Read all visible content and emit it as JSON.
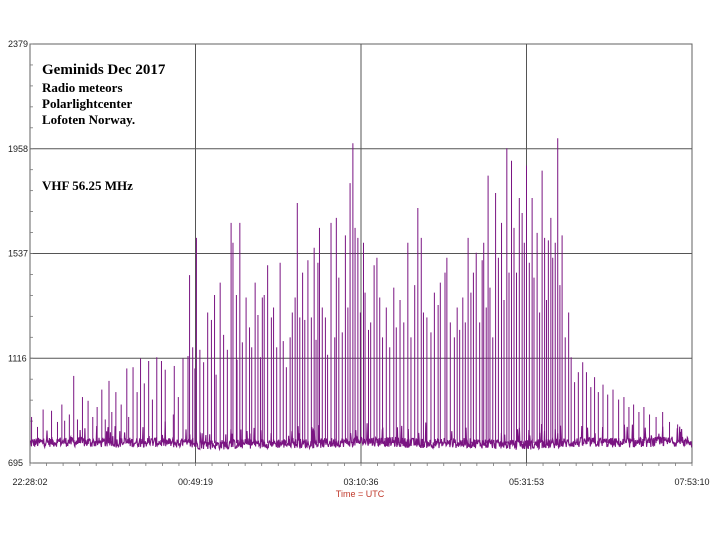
{
  "chart_data": {
    "type": "line",
    "title": "Geminids Dec 2017",
    "annotation_lines": [
      "Radio meteors",
      "Polarlightcenter",
      "Lofoten Norway."
    ],
    "frequency_label": "VHF 56.25 MHz",
    "xlabel": "Time = UTC",
    "ylabel": "",
    "x_tick_labels": [
      "22:28:02",
      "00:49:19",
      "03:10:36",
      "05:31:53",
      "07:53:10"
    ],
    "y_tick_labels": [
      "695",
      "1116",
      "1537",
      "1958",
      "2379"
    ],
    "ylim": [
      695,
      2379
    ],
    "grid": true,
    "line_color": "#7a1482",
    "baseline": 775,
    "noise_amplitude": 20,
    "series": [
      {
        "values": [
          [
            0.5,
            880
          ],
          [
            2.4,
            840
          ],
          [
            4.2,
            910
          ],
          [
            6.9,
            905
          ],
          [
            8.8,
            860
          ],
          [
            10.2,
            930
          ],
          [
            11.1,
            865
          ],
          [
            12.6,
            890
          ],
          [
            14.0,
            1045
          ],
          [
            15.2,
            870
          ],
          [
            16.8,
            960
          ],
          [
            18.6,
            945
          ],
          [
            20.1,
            880
          ],
          [
            21.5,
            920
          ],
          [
            23.0,
            990
          ],
          [
            24.1,
            870
          ],
          [
            25.3,
            1025
          ],
          [
            26.2,
            900
          ],
          [
            27.5,
            980
          ],
          [
            29.2,
            930
          ],
          [
            31.0,
            1075
          ],
          [
            31.6,
            880
          ],
          [
            33.0,
            1080
          ],
          [
            34.3,
            980
          ],
          [
            35.4,
            1115
          ],
          [
            36.6,
            1015
          ],
          [
            38.0,
            1105
          ],
          [
            39.2,
            950
          ],
          [
            40.6,
            1120
          ],
          [
            42.1,
            1105
          ],
          [
            43.3,
            1070
          ],
          [
            45.9,
            890
          ],
          [
            46.2,
            1085
          ],
          [
            47.5,
            960
          ],
          [
            49.0,
            1115
          ],
          [
            50.6,
            1125
          ],
          [
            51.1,
            1450
          ],
          [
            52.1,
            1160
          ],
          [
            52.8,
            1075
          ],
          [
            53.3,
            1600
          ],
          [
            54.4,
            1150
          ],
          [
            55.6,
            1100
          ],
          [
            56.9,
            1300
          ],
          [
            58.1,
            1270
          ],
          [
            59.1,
            1370
          ],
          [
            59.6,
            1050
          ],
          [
            60.9,
            1420
          ],
          [
            62.0,
            1210
          ],
          [
            63.2,
            1150
          ],
          [
            64.4,
            1660
          ],
          [
            65.0,
            1580
          ],
          [
            66.1,
            1370
          ],
          [
            66.3,
            1110
          ],
          [
            67.2,
            1660
          ],
          [
            68.0,
            1180
          ],
          [
            69.2,
            1360
          ],
          [
            70.3,
            1240
          ],
          [
            71.0,
            1160
          ],
          [
            72.1,
            1420
          ],
          [
            73.0,
            1290
          ],
          [
            73.8,
            1120
          ],
          [
            74.4,
            1360
          ],
          [
            75.0,
            1370
          ],
          [
            76.1,
            1490
          ],
          [
            77.3,
            1280
          ],
          [
            78.0,
            1320
          ],
          [
            79.0,
            1160
          ],
          [
            80.1,
            1500
          ],
          [
            81.1,
            1185
          ],
          [
            82.1,
            1080
          ],
          [
            83.3,
            1200
          ],
          [
            84.0,
            1300
          ],
          [
            84.9,
            1360
          ],
          [
            85.6,
            1740
          ],
          [
            86.4,
            1280
          ],
          [
            87.3,
            1460
          ],
          [
            88.0,
            1270
          ],
          [
            89.0,
            1510
          ],
          [
            90.1,
            1280
          ],
          [
            91.0,
            1560
          ],
          [
            91.6,
            1190
          ],
          [
            92.2,
            1500
          ],
          [
            92.7,
            1640
          ],
          [
            93.6,
            1320
          ],
          [
            94.6,
            1280
          ],
          [
            95.3,
            1130
          ],
          [
            96.4,
            1660
          ],
          [
            97.6,
            1200
          ],
          [
            98.1,
            1680
          ],
          [
            98.9,
            1440
          ],
          [
            100.0,
            1220
          ],
          [
            101.0,
            1610
          ],
          [
            101.8,
            1320
          ],
          [
            102.5,
            1820
          ],
          [
            103.4,
            1980
          ],
          [
            104.1,
            1640
          ],
          [
            105.0,
            1600
          ],
          [
            105.8,
            1300
          ],
          [
            106.8,
            1580
          ],
          [
            107.3,
            1380
          ],
          [
            108.4,
            1230
          ],
          [
            109.1,
            1260
          ],
          [
            110.2,
            1490
          ],
          [
            111.1,
            1520
          ],
          [
            112.0,
            1360
          ],
          [
            112.9,
            1200
          ],
          [
            114.1,
            1320
          ],
          [
            115.2,
            1160
          ],
          [
            116.5,
            1400
          ],
          [
            117.3,
            1240
          ],
          [
            118.5,
            1350
          ],
          [
            119.7,
            1260
          ],
          [
            121.0,
            1580
          ],
          [
            122.0,
            1200
          ],
          [
            123.2,
            1410
          ],
          [
            124.2,
            1720
          ],
          [
            125.3,
            1600
          ],
          [
            126.0,
            1300
          ],
          [
            127.1,
            1280
          ],
          [
            128.4,
            1220
          ],
          [
            129.5,
            1380
          ],
          [
            130.7,
            1330
          ],
          [
            131.4,
            1420
          ],
          [
            132.9,
            1460
          ],
          [
            133.5,
            1520
          ],
          [
            134.6,
            1260
          ],
          [
            135.9,
            1200
          ],
          [
            136.8,
            1320
          ],
          [
            137.6,
            1230
          ],
          [
            138.6,
            1360
          ],
          [
            139.4,
            1260
          ],
          [
            140.3,
            1600
          ],
          [
            141.2,
            1380
          ],
          [
            142.0,
            1460
          ],
          [
            142.9,
            1540
          ],
          [
            144.0,
            1260
          ],
          [
            144.8,
            1510
          ],
          [
            145.3,
            1580
          ],
          [
            146.1,
            1320
          ],
          [
            146.7,
            1850
          ],
          [
            147.3,
            1400
          ],
          [
            148.2,
            1200
          ],
          [
            149.1,
            1780
          ],
          [
            150.0,
            1520
          ],
          [
            151.0,
            1660
          ],
          [
            151.8,
            1350
          ],
          [
            152.7,
            1960
          ],
          [
            153.4,
            1460
          ],
          [
            154.2,
            1910
          ],
          [
            155.0,
            1640
          ],
          [
            155.8,
            1460
          ],
          [
            156.7,
            1760
          ],
          [
            157.6,
            1700
          ],
          [
            158.3,
            1580
          ],
          [
            159.0,
            1890
          ],
          [
            159.9,
            1500
          ],
          [
            160.8,
            1760
          ],
          [
            161.4,
            1440
          ],
          [
            162.4,
            1620
          ],
          [
            163.2,
            1300
          ],
          [
            164.0,
            1870
          ],
          [
            164.8,
            1600
          ],
          [
            165.4,
            1350
          ],
          [
            166.0,
            1590
          ],
          [
            166.8,
            1680
          ],
          [
            167.4,
            1520
          ],
          [
            168.2,
            1580
          ],
          [
            169.0,
            2000
          ],
          [
            169.7,
            1410
          ],
          [
            170.4,
            1610
          ],
          [
            171.4,
            1200
          ],
          [
            172.5,
            1300
          ],
          [
            173.3,
            1120
          ],
          [
            174.4,
            1020
          ],
          [
            175.6,
            1060
          ],
          [
            177.0,
            1100
          ],
          [
            178.2,
            1060
          ],
          [
            179.6,
            1000
          ],
          [
            180.8,
            1040
          ],
          [
            182.0,
            980
          ],
          [
            183.5,
            1010
          ],
          [
            185.0,
            970
          ],
          [
            186.7,
            990
          ],
          [
            188.5,
            950
          ],
          [
            190.2,
            960
          ],
          [
            191.8,
            920
          ],
          [
            193.3,
            930
          ],
          [
            195.0,
            900
          ],
          [
            196.6,
            920
          ],
          [
            198.4,
            890
          ],
          [
            200.5,
            880
          ],
          [
            202.6,
            900
          ],
          [
            204.8,
            860
          ],
          [
            207.4,
            850
          ]
        ]
      }
    ]
  }
}
